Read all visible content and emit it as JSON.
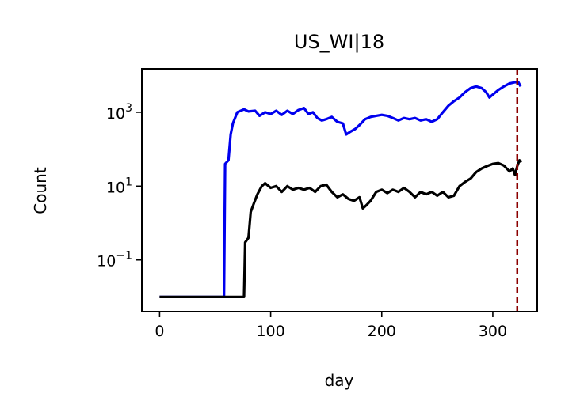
{
  "chart_data": {
    "type": "line",
    "title": "US_WI|18",
    "xlabel": "day",
    "ylabel": "Count",
    "yscale": "log",
    "xlim": [
      -16,
      340
    ],
    "ylim": [
      0.004,
      15000
    ],
    "grid": false,
    "legend": "none",
    "x_ticks": [
      {
        "value": 0,
        "label": "0"
      },
      {
        "value": 100,
        "label": "100"
      },
      {
        "value": 200,
        "label": "200"
      },
      {
        "value": 300,
        "label": "300"
      }
    ],
    "y_ticks": [
      {
        "value": 0.1,
        "base": "10",
        "exp": "−1"
      },
      {
        "value": 10,
        "base": "10",
        "exp": "1"
      },
      {
        "value": 1000,
        "base": "10",
        "exp": "3"
      }
    ],
    "vline": {
      "x": 322,
      "color": "#8b0000",
      "style": "dashed"
    },
    "series": [
      {
        "color": "#0000ee",
        "points": [
          [
            0,
            0.01
          ],
          [
            58,
            0.01
          ],
          [
            59,
            40
          ],
          [
            62,
            50
          ],
          [
            64,
            250
          ],
          [
            66,
            500
          ],
          [
            70,
            1000
          ],
          [
            76,
            1200
          ],
          [
            80,
            1050
          ],
          [
            86,
            1100
          ],
          [
            90,
            800
          ],
          [
            95,
            1000
          ],
          [
            100,
            900
          ],
          [
            105,
            1100
          ],
          [
            110,
            850
          ],
          [
            115,
            1100
          ],
          [
            120,
            900
          ],
          [
            125,
            1150
          ],
          [
            130,
            1300
          ],
          [
            134,
            900
          ],
          [
            138,
            1000
          ],
          [
            142,
            700
          ],
          [
            146,
            600
          ],
          [
            150,
            650
          ],
          [
            155,
            750
          ],
          [
            160,
            550
          ],
          [
            165,
            500
          ],
          [
            168,
            250
          ],
          [
            172,
            300
          ],
          [
            176,
            350
          ],
          [
            180,
            450
          ],
          [
            185,
            650
          ],
          [
            190,
            750
          ],
          [
            195,
            800
          ],
          [
            200,
            850
          ],
          [
            205,
            800
          ],
          [
            210,
            700
          ],
          [
            215,
            600
          ],
          [
            220,
            700
          ],
          [
            225,
            650
          ],
          [
            230,
            700
          ],
          [
            235,
            600
          ],
          [
            240,
            650
          ],
          [
            245,
            550
          ],
          [
            250,
            650
          ],
          [
            255,
            1000
          ],
          [
            260,
            1500
          ],
          [
            265,
            2000
          ],
          [
            270,
            2500
          ],
          [
            275,
            3500
          ],
          [
            280,
            4500
          ],
          [
            285,
            5000
          ],
          [
            290,
            4500
          ],
          [
            294,
            3500
          ],
          [
            297,
            2500
          ],
          [
            300,
            3000
          ],
          [
            305,
            4000
          ],
          [
            310,
            5000
          ],
          [
            315,
            6000
          ],
          [
            320,
            6500
          ],
          [
            323,
            6500
          ],
          [
            325,
            5000
          ]
        ]
      },
      {
        "color": "#000000",
        "points": [
          [
            0,
            0.01
          ],
          [
            76,
            0.01
          ],
          [
            77,
            0.3
          ],
          [
            80,
            0.4
          ],
          [
            82,
            2
          ],
          [
            85,
            3.5
          ],
          [
            88,
            6
          ],
          [
            92,
            10
          ],
          [
            95,
            12
          ],
          [
            100,
            9
          ],
          [
            105,
            10
          ],
          [
            110,
            7
          ],
          [
            115,
            10
          ],
          [
            120,
            8
          ],
          [
            125,
            9
          ],
          [
            130,
            8
          ],
          [
            135,
            9
          ],
          [
            140,
            7
          ],
          [
            145,
            10
          ],
          [
            150,
            11
          ],
          [
            155,
            7
          ],
          [
            160,
            5
          ],
          [
            165,
            6
          ],
          [
            170,
            4.5
          ],
          [
            175,
            4
          ],
          [
            180,
            5
          ],
          [
            183,
            2.5
          ],
          [
            186,
            3
          ],
          [
            190,
            4
          ],
          [
            195,
            7
          ],
          [
            200,
            8
          ],
          [
            205,
            6.5
          ],
          [
            210,
            8
          ],
          [
            215,
            7
          ],
          [
            220,
            9
          ],
          [
            225,
            7
          ],
          [
            230,
            5
          ],
          [
            235,
            7
          ],
          [
            240,
            6
          ],
          [
            245,
            7
          ],
          [
            250,
            5.5
          ],
          [
            255,
            7
          ],
          [
            260,
            5
          ],
          [
            265,
            5.5
          ],
          [
            270,
            10
          ],
          [
            275,
            13
          ],
          [
            280,
            16
          ],
          [
            285,
            24
          ],
          [
            290,
            30
          ],
          [
            295,
            35
          ],
          [
            300,
            40
          ],
          [
            305,
            42
          ],
          [
            310,
            36
          ],
          [
            315,
            25
          ],
          [
            318,
            30
          ],
          [
            320,
            20
          ],
          [
            322,
            35
          ],
          [
            324,
            50
          ],
          [
            326,
            45
          ]
        ]
      }
    ]
  }
}
